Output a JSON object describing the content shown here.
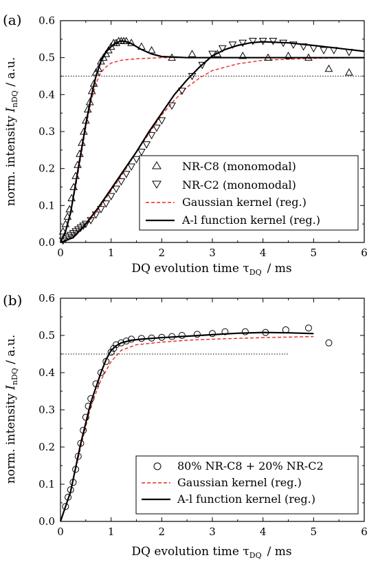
{
  "panels": [
    {
      "tag": "(a)",
      "xlabel_main": "DQ evolution time τ",
      "xlabel_sub": "DQ",
      "xlabel_unit": "/  ms",
      "ylabel_main": "norm. intensity ",
      "ylabel_var": "I",
      "ylabel_sub": "nDQ",
      "ylabel_unit": "  /  a.u.",
      "legend": [
        {
          "label": "NR-C8 (monomodal)",
          "marker": "triangle-up"
        },
        {
          "label": "NR-C2 (monomodal)",
          "marker": "triangle-down"
        },
        {
          "label": "Gaussian kernel (reg.)",
          "marker": "dash-red"
        },
        {
          "label": "A-l function kernel (reg.)",
          "marker": "line-black"
        }
      ]
    },
    {
      "tag": "(b)",
      "xlabel_main": "DQ evolution time τ",
      "xlabel_sub": "DQ",
      "xlabel_unit": "/  ms",
      "ylabel_main": "norm. intensity ",
      "ylabel_var": "I",
      "ylabel_sub": "nDQ",
      "ylabel_unit": "  /  a.u.",
      "legend": [
        {
          "label": "80% NR-C8 + 20% NR-C2",
          "marker": "circle"
        },
        {
          "label": "Gaussian kernel (reg.)",
          "marker": "dash-red"
        },
        {
          "label": "A-l function kernel (reg.)",
          "marker": "line-black"
        }
      ]
    }
  ],
  "chart_data": [
    {
      "type": "scatter",
      "panel": "(a)",
      "xlim": [
        0,
        6
      ],
      "ylim": [
        0,
        0.6
      ],
      "xticks": [
        "0",
        "1",
        "2",
        "3",
        "4",
        "5",
        "6"
      ],
      "yticks": [
        "0.0",
        "0.1",
        "0.2",
        "0.3",
        "0.4",
        "0.5",
        "0.6"
      ],
      "reference_line": {
        "y": 0.45,
        "x_range": [
          0,
          6
        ],
        "style": "dotted"
      },
      "legend_position": "lower-right",
      "series": [
        {
          "name": "NR-C8 (monomodal)",
          "kind": "markers",
          "marker": "triangle-up",
          "x": [
            0.05,
            0.1,
            0.14,
            0.18,
            0.22,
            0.26,
            0.3,
            0.34,
            0.38,
            0.42,
            0.46,
            0.5,
            0.54,
            0.58,
            0.62,
            0.66,
            0.7,
            0.75,
            0.8,
            0.85,
            0.9,
            0.95,
            1.0,
            1.05,
            1.1,
            1.15,
            1.2,
            1.25,
            1.3,
            1.4,
            1.6,
            1.8,
            2.2,
            2.6,
            3.1,
            3.6,
            4.1,
            4.5,
            4.9,
            5.3,
            5.7
          ],
          "y": [
            0.03,
            0.05,
            0.07,
            0.09,
            0.12,
            0.15,
            0.18,
            0.21,
            0.24,
            0.27,
            0.3,
            0.33,
            0.36,
            0.38,
            0.41,
            0.43,
            0.46,
            0.47,
            0.49,
            0.5,
            0.51,
            0.52,
            0.53,
            0.54,
            0.54,
            0.545,
            0.545,
            0.545,
            0.545,
            0.54,
            0.53,
            0.52,
            0.5,
            0.51,
            0.51,
            0.505,
            0.5,
            0.505,
            0.5,
            0.47,
            0.46
          ]
        },
        {
          "name": "NR-C2 (monomodal)",
          "kind": "markers",
          "marker": "triangle-down",
          "x": [
            0.05,
            0.1,
            0.15,
            0.2,
            0.25,
            0.3,
            0.35,
            0.4,
            0.45,
            0.5,
            0.6,
            0.7,
            0.8,
            0.9,
            1.0,
            1.1,
            1.2,
            1.3,
            1.4,
            1.5,
            1.6,
            1.7,
            1.8,
            1.9,
            2.0,
            2.2,
            2.4,
            2.6,
            2.8,
            3.0,
            3.2,
            3.4,
            3.6,
            3.8,
            4.0,
            4.2,
            4.4,
            4.6,
            4.8,
            5.0,
            5.2,
            5.4,
            5.7
          ],
          "y": [
            0.005,
            0.01,
            0.015,
            0.02,
            0.025,
            0.03,
            0.035,
            0.04,
            0.045,
            0.05,
            0.06,
            0.075,
            0.09,
            0.105,
            0.125,
            0.145,
            0.165,
            0.185,
            0.205,
            0.225,
            0.245,
            0.265,
            0.29,
            0.31,
            0.33,
            0.37,
            0.41,
            0.45,
            0.48,
            0.51,
            0.525,
            0.535,
            0.54,
            0.545,
            0.545,
            0.545,
            0.54,
            0.535,
            0.53,
            0.525,
            0.52,
            0.52,
            0.515
          ]
        },
        {
          "name": "Gaussian kernel (reg.)",
          "kind": "line",
          "style": "dash-red",
          "x": [
            0,
            0.1,
            0.2,
            0.3,
            0.4,
            0.5,
            0.6,
            0.7,
            0.8,
            0.9,
            1.0,
            1.2,
            1.5,
            2.0,
            3.0,
            6.0
          ],
          "y": [
            0,
            0.03,
            0.08,
            0.15,
            0.23,
            0.31,
            0.38,
            0.43,
            0.46,
            0.475,
            0.485,
            0.493,
            0.497,
            0.5,
            0.5,
            0.5
          ]
        },
        {
          "name": "Gaussian kernel (reg.)",
          "kind": "line",
          "style": "dash-red",
          "x": [
            0,
            0.25,
            0.5,
            0.75,
            1.0,
            1.25,
            1.5,
            1.75,
            2.0,
            2.25,
            2.5,
            2.75,
            3.0,
            3.5,
            4.0,
            5.0,
            6.0
          ],
          "y": [
            0,
            0.012,
            0.045,
            0.09,
            0.14,
            0.19,
            0.245,
            0.295,
            0.345,
            0.385,
            0.42,
            0.445,
            0.465,
            0.483,
            0.493,
            0.498,
            0.5
          ]
        },
        {
          "name": "A-l function kernel (reg.)",
          "kind": "line",
          "style": "line-black",
          "x": [
            0,
            0.1,
            0.2,
            0.3,
            0.4,
            0.5,
            0.6,
            0.7,
            0.8,
            0.9,
            1.0,
            1.1,
            1.2,
            1.3,
            1.4,
            1.6,
            1.8,
            2.0,
            2.5,
            3.0,
            4.0,
            6.0
          ],
          "y": [
            0,
            0.03,
            0.08,
            0.16,
            0.24,
            0.32,
            0.39,
            0.45,
            0.49,
            0.515,
            0.53,
            0.54,
            0.545,
            0.543,
            0.538,
            0.522,
            0.51,
            0.503,
            0.5,
            0.5,
            0.5,
            0.5
          ]
        },
        {
          "name": "A-l function kernel (reg.)",
          "kind": "line",
          "style": "line-black",
          "x": [
            0,
            0.25,
            0.5,
            0.75,
            1.0,
            1.25,
            1.5,
            1.75,
            2.0,
            2.25,
            2.5,
            2.75,
            3.0,
            3.25,
            3.5,
            3.75,
            4.0,
            4.5,
            5.0,
            5.5,
            6.0
          ],
          "y": [
            0,
            0.013,
            0.05,
            0.095,
            0.145,
            0.195,
            0.245,
            0.3,
            0.35,
            0.4,
            0.44,
            0.475,
            0.505,
            0.522,
            0.533,
            0.54,
            0.543,
            0.54,
            0.533,
            0.525,
            0.517
          ]
        }
      ]
    },
    {
      "type": "scatter",
      "panel": "(b)",
      "xlim": [
        0,
        6
      ],
      "ylim": [
        0,
        0.6
      ],
      "xticks": [
        "0",
        "1",
        "2",
        "3",
        "4",
        "5",
        "6"
      ],
      "yticks": [
        "0.0",
        "0.1",
        "0.2",
        "0.3",
        "0.4",
        "0.5",
        "0.6"
      ],
      "reference_line": {
        "y": 0.45,
        "x_range": [
          0,
          4.5
        ],
        "style": "dotted"
      },
      "legend_position": "lower-right",
      "series": [
        {
          "name": "80% NR-C8 + 20% NR-C2",
          "kind": "markers",
          "marker": "circle",
          "x": [
            0.1,
            0.15,
            0.2,
            0.25,
            0.3,
            0.35,
            0.4,
            0.45,
            0.5,
            0.55,
            0.6,
            0.7,
            0.8,
            0.9,
            1.0,
            1.05,
            1.1,
            1.2,
            1.3,
            1.4,
            1.6,
            1.8,
            2.0,
            2.2,
            2.4,
            2.7,
            3.0,
            3.25,
            3.65,
            4.05,
            4.45,
            4.9,
            5.3
          ],
          "y": [
            0.04,
            0.065,
            0.085,
            0.105,
            0.14,
            0.175,
            0.21,
            0.245,
            0.28,
            0.31,
            0.33,
            0.37,
            0.4,
            0.43,
            0.455,
            0.465,
            0.475,
            0.48,
            0.485,
            0.49,
            0.492,
            0.493,
            0.495,
            0.497,
            0.5,
            0.503,
            0.505,
            0.51,
            0.51,
            0.508,
            0.515,
            0.52,
            0.48
          ]
        },
        {
          "name": "Gaussian kernel (reg.)",
          "kind": "line",
          "style": "dash-red",
          "x": [
            0,
            0.2,
            0.4,
            0.6,
            0.8,
            1.0,
            1.2,
            1.5,
            2.0,
            2.5,
            3.0,
            4.0,
            5.0
          ],
          "y": [
            0,
            0.08,
            0.2,
            0.31,
            0.38,
            0.43,
            0.46,
            0.475,
            0.482,
            0.487,
            0.49,
            0.494,
            0.497
          ]
        },
        {
          "name": "A-l function kernel (reg.)",
          "kind": "line",
          "style": "line-black",
          "x": [
            0,
            0.2,
            0.4,
            0.6,
            0.8,
            0.9,
            1.0,
            1.1,
            1.2,
            1.4,
            1.6,
            2.0,
            2.5,
            3.0,
            3.5,
            4.0,
            4.5,
            5.0
          ],
          "y": [
            0,
            0.08,
            0.21,
            0.32,
            0.4,
            0.435,
            0.46,
            0.472,
            0.48,
            0.487,
            0.49,
            0.494,
            0.498,
            0.502,
            0.506,
            0.508,
            0.507,
            0.505
          ]
        }
      ]
    }
  ]
}
